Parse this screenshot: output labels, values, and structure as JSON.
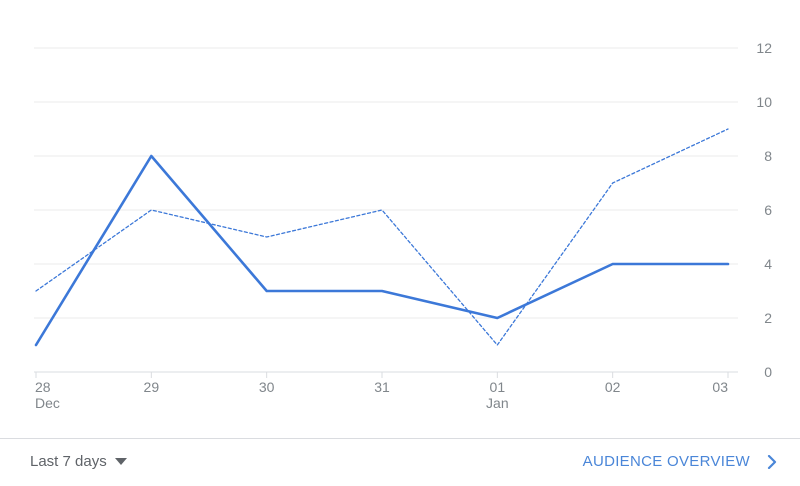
{
  "chart_data": {
    "type": "line",
    "categories": [
      "28",
      "29",
      "30",
      "31",
      "01",
      "02",
      "03"
    ],
    "category_sublabels": [
      "Dec",
      "",
      "",
      "",
      "Jan",
      "",
      ""
    ],
    "series": [
      {
        "style": "solid",
        "color": "#3c78d8",
        "values": [
          1,
          8,
          3,
          3,
          2,
          4,
          4
        ]
      },
      {
        "style": "dotted",
        "color": "#3c78d8",
        "values": [
          3,
          6,
          5,
          6,
          1,
          7,
          9
        ]
      }
    ],
    "y_ticks": [
      "0",
      "2",
      "4",
      "6",
      "8",
      "10",
      "12"
    ],
    "ylim": [
      0,
      12
    ],
    "y_axis_side": "right",
    "grid": true
  },
  "footer": {
    "range_label": "Last 7 days",
    "overview_label": "AUDIENCE OVERVIEW"
  },
  "icons": {
    "range": "caret-down-icon",
    "overview": "chevron-right-icon"
  }
}
